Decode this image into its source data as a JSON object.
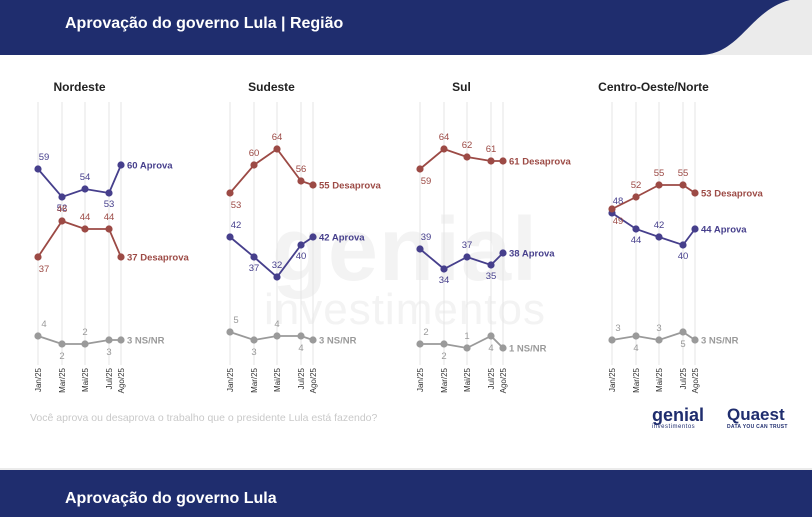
{
  "header": {
    "title": "Aprovação do governo Lula | Região"
  },
  "footer": {
    "title": "Aprovação do governo Lula"
  },
  "question": "Você aprova ou desaprova o trabalho que o presidente Lula está fazendo?",
  "watermark": {
    "brand": "genial",
    "sub": "investimentos"
  },
  "logos": {
    "genial": "genial",
    "genial_sub": "investimentos",
    "quaest": "Quaest",
    "quaest_sub": "DATA YOU CAN TRUST"
  },
  "colors": {
    "aprova": "#463f8c",
    "desaprova": "#9c4a45",
    "nsnr": "#9a9a9a",
    "header": "#1f2d6e"
  },
  "chart_data": [
    {
      "type": "line",
      "title": "Nordeste",
      "x": [
        "Jan/25",
        "Mar/25",
        "Mai/25",
        "Jul/25",
        "Ago/25"
      ],
      "series": [
        {
          "name": "Aprova",
          "values": [
            59,
            52,
            54,
            53,
            60
          ],
          "end_label": "60 Aprova"
        },
        {
          "name": "Desaprova",
          "values": [
            37,
            46,
            44,
            44,
            37
          ],
          "end_label": "37 Desaprova"
        },
        {
          "name": "NS/NR",
          "values": [
            4,
            2,
            2,
            3,
            3
          ],
          "end_label": "3 NS/NR"
        }
      ]
    },
    {
      "type": "line",
      "title": "Sudeste",
      "x": [
        "Jan/25",
        "Mar/25",
        "Mai/25",
        "Jul/25",
        "Ago/25"
      ],
      "series": [
        {
          "name": "Aprova",
          "values": [
            42,
            37,
            32,
            40,
            42
          ],
          "end_label": "42 Aprova"
        },
        {
          "name": "Desaprova",
          "values": [
            53,
            60,
            64,
            56,
            55
          ],
          "end_label": "55 Desaprova"
        },
        {
          "name": "NS/NR",
          "values": [
            5,
            3,
            4,
            4,
            3
          ],
          "end_label": "3 NS/NR"
        }
      ]
    },
    {
      "type": "line",
      "title": "Sul",
      "x": [
        "Jan/25",
        "Mar/25",
        "Mai/25",
        "Jul/25",
        "Ago/25"
      ],
      "series": [
        {
          "name": "Aprova",
          "values": [
            39,
            34,
            37,
            35,
            38
          ],
          "end_label": "38 Aprova"
        },
        {
          "name": "Desaprova",
          "values": [
            59,
            64,
            62,
            61,
            61
          ],
          "end_label": "61 Desaprova"
        },
        {
          "name": "NS/NR",
          "values": [
            2,
            2,
            1,
            4,
            1
          ],
          "end_label": "1 NS/NR"
        }
      ]
    },
    {
      "type": "line",
      "title": "Centro-Oeste/Norte",
      "x": [
        "Jan/25",
        "Mar/25",
        "Mai/25",
        "Jul/25",
        "Ago/25"
      ],
      "series": [
        {
          "name": "Aprova",
          "values": [
            48,
            44,
            42,
            40,
            44
          ],
          "end_label": "44 Aprova"
        },
        {
          "name": "Desaprova",
          "values": [
            49,
            52,
            55,
            55,
            53
          ],
          "end_label": "53 Desaprova"
        },
        {
          "name": "NS/NR",
          "values": [
            3,
            4,
            3,
            5,
            3
          ],
          "end_label": "3 NS/NR"
        }
      ]
    }
  ]
}
